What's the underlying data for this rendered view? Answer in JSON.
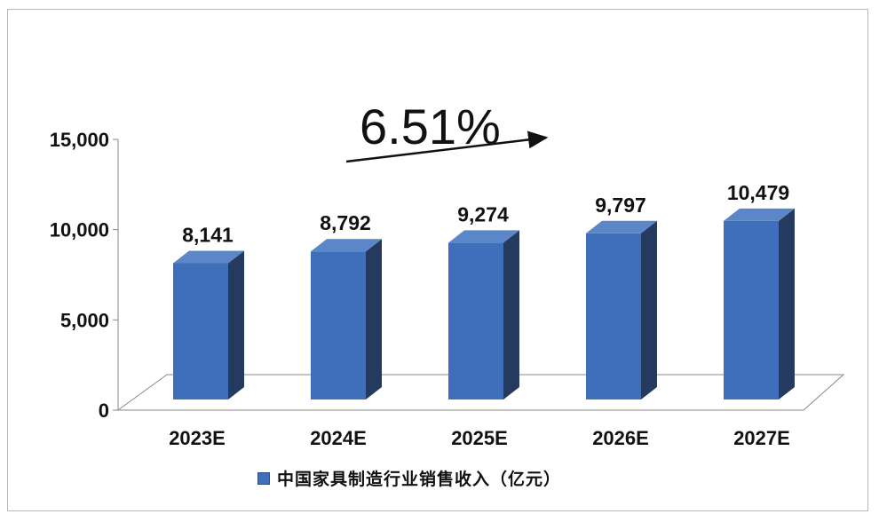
{
  "chart_data": {
    "type": "bar",
    "categories": [
      "2023E",
      "2024E",
      "2025E",
      "2026E",
      "2027E"
    ],
    "series": [
      {
        "name": "中国家具制造行业销售收入（亿元）",
        "values": [
          8141,
          8792,
          9274,
          9797,
          10479
        ]
      }
    ],
    "value_labels": [
      "8,141",
      "8,792",
      "9,274",
      "9,797",
      "10,479"
    ],
    "y_ticks": [
      "0",
      "5,000",
      "10,000",
      "15,000"
    ],
    "ylim": [
      0,
      15000
    ],
    "title": "",
    "xlabel": "",
    "ylabel": "",
    "grid": false,
    "legend_position": "bottom",
    "annotation": "6.51%",
    "colors": {
      "bar_front": "#3f6fba",
      "bar_side": "#243a5e",
      "bar_top": "#5b86c8",
      "floor": "#ffffff"
    }
  }
}
